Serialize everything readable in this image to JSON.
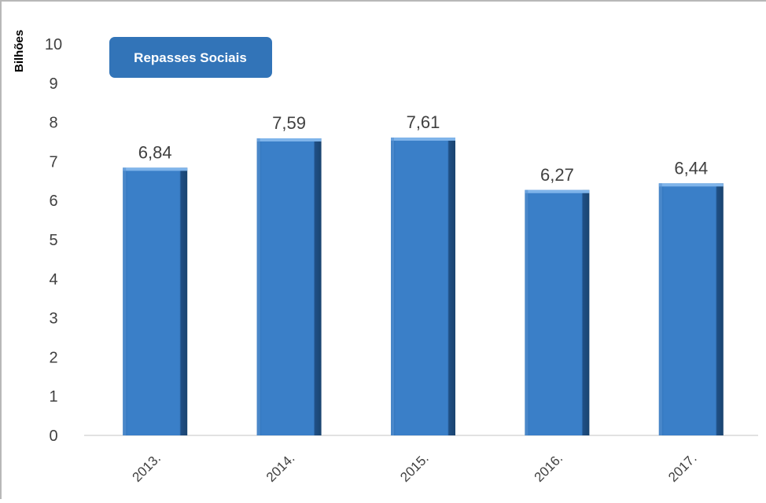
{
  "chart_data": {
    "type": "bar",
    "categories": [
      "2013.",
      "2014.",
      "2015.",
      "2016.",
      "2017."
    ],
    "series": [
      {
        "name": "Repasses Sociais",
        "values": [
          6.84,
          7.59,
          7.61,
          6.27,
          6.44
        ],
        "labels": [
          "6,84",
          "7,59",
          "7,61",
          "6,27",
          "6,44"
        ]
      }
    ],
    "title": "",
    "xlabel": "",
    "ylabel": "Bilhões",
    "ylim": [
      0,
      10
    ],
    "yticks": [
      0,
      1,
      2,
      3,
      4,
      5,
      6,
      7,
      8,
      9,
      10
    ],
    "grid": false,
    "legend_position": "top-left",
    "colors": {
      "bar_face": "#3a7fc8",
      "bar_side": "#1f4f85",
      "bar_top": "#7fb4ea",
      "axis": "#d9d9d9",
      "text": "#404040",
      "legend_bg": "#3274b8"
    }
  }
}
